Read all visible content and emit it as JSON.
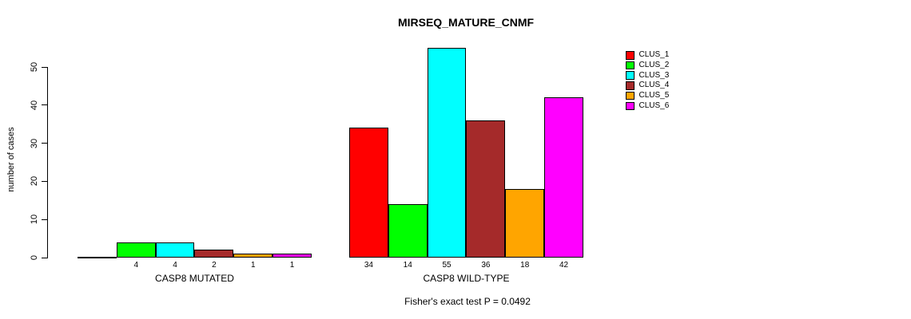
{
  "chart_data": {
    "type": "bar",
    "title": "MIRSEQ_MATURE_CNMF",
    "ylabel": "number of cases",
    "xlabel": "",
    "ylim": [
      0,
      55
    ],
    "yticks": [
      0,
      10,
      20,
      30,
      40,
      50
    ],
    "grid": false,
    "legend_position": "top-right",
    "series_names": [
      "CLUS_1",
      "CLUS_2",
      "CLUS_3",
      "CLUS_4",
      "CLUS_5",
      "CLUS_6"
    ],
    "colors": [
      "#FF0000",
      "#00FF00",
      "#00FFFF",
      "#A52A2A",
      "#FFA500",
      "#FF00FF"
    ],
    "groups": [
      {
        "label": "CASP8 MUTATED",
        "values": [
          0,
          4,
          4,
          2,
          1,
          1
        ],
        "bar_labels": [
          "",
          "4",
          "4",
          "2",
          "1",
          "1"
        ]
      },
      {
        "label": "CASP8 WILD-TYPE",
        "values": [
          34,
          14,
          55,
          36,
          18,
          42
        ],
        "bar_labels": [
          "34",
          "14",
          "55",
          "36",
          "18",
          "42"
        ]
      }
    ],
    "annotation": "Fisher's exact test P = 0.0492"
  }
}
